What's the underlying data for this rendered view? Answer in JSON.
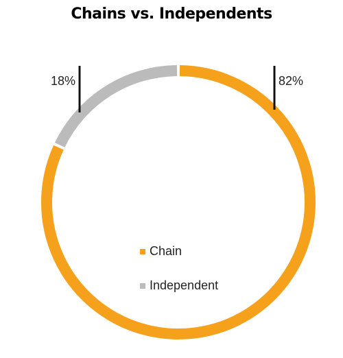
{
  "chart_data": {
    "type": "pie",
    "style": "donut-ring",
    "title": "Chains vs. Independents",
    "categories": [
      "Chain",
      "Independent"
    ],
    "values": [
      82,
      18
    ],
    "value_labels": [
      "82%",
      "18%"
    ],
    "colors": [
      "#F5A11C",
      "#BBBBBB"
    ],
    "legend": {
      "placement": "center",
      "entries": [
        "Chain",
        "Independent"
      ]
    }
  }
}
